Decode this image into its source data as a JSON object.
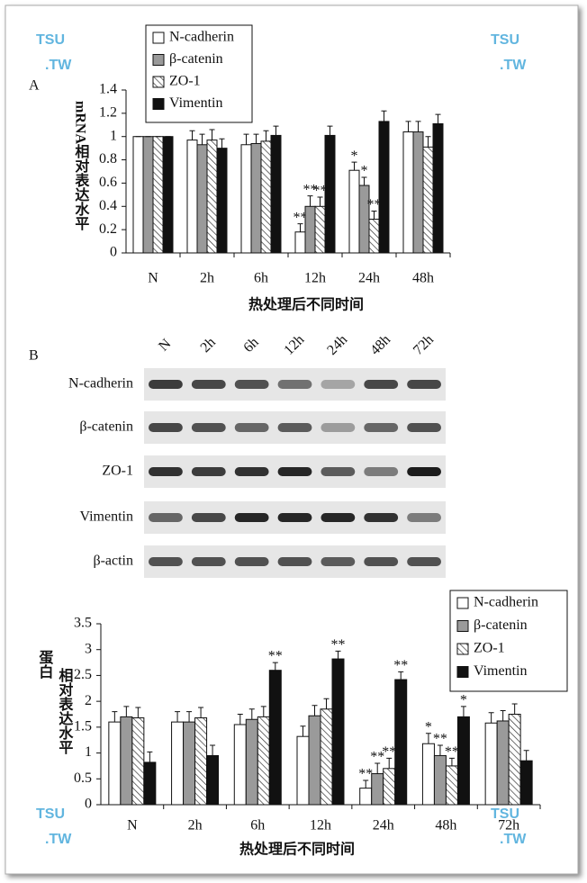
{
  "panel_labels": [
    "A",
    "B"
  ],
  "watermark": {
    "line1": "TSU",
    "line2": ".TW"
  },
  "chart_data": [
    {
      "type": "bar",
      "ylabel": [
        "mRNA相对表达水平"
      ],
      "xlabel": "热处理后不同时间",
      "categories": [
        "N",
        "2h",
        "6h",
        "12h",
        "24h",
        "48h"
      ],
      "ylim": [
        0,
        1.4
      ],
      "yticks": [
        0,
        0.2,
        0.4,
        0.6,
        0.8,
        1,
        1.2,
        1.4
      ],
      "legend": "upper left",
      "series": [
        {
          "name": "N-cadherin",
          "color": "#ffffff",
          "values": [
            1,
            0.97,
            0.93,
            0.18,
            0.71,
            1.04
          ],
          "errors": [
            0,
            0.08,
            0.09,
            0.07,
            0.07,
            0.09
          ],
          "stars": [
            null,
            null,
            null,
            "**",
            "*",
            null
          ]
        },
        {
          "name": "β-catenin",
          "color": "#9a9a9a",
          "values": [
            1,
            0.93,
            0.94,
            0.4,
            0.58,
            1.04
          ],
          "errors": [
            0,
            0.09,
            0.08,
            0.09,
            0.07,
            0.09
          ],
          "stars": [
            null,
            null,
            null,
            "**",
            "*",
            null
          ]
        },
        {
          "name": "ZO-1",
          "color": "#ffffff",
          "pattern": "hatch",
          "values": [
            1,
            0.97,
            0.96,
            0.4,
            0.29,
            0.91
          ],
          "errors": [
            0,
            0.09,
            0.09,
            0.08,
            0.07,
            0.09
          ],
          "stars": [
            null,
            null,
            null,
            "**",
            "**",
            null
          ]
        },
        {
          "name": "Vimentin",
          "color": "#111111",
          "values": [
            1,
            0.9,
            1.01,
            1.01,
            1.13,
            1.11
          ],
          "errors": [
            0,
            0.08,
            0.08,
            0.08,
            0.09,
            0.08
          ],
          "stars": [
            null,
            null,
            null,
            null,
            null,
            null
          ]
        }
      ]
    },
    {
      "type": "bar",
      "ylabel": [
        "蛋白",
        "相对表达水平"
      ],
      "xlabel": "热处理后不同时间",
      "categories": [
        "N",
        "2h",
        "6h",
        "12h",
        "24h",
        "48h",
        "72h"
      ],
      "ylim": [
        0,
        3.5
      ],
      "yticks": [
        0,
        0.5,
        1,
        1.5,
        2,
        2.5,
        3,
        3.5
      ],
      "legend": "upper right",
      "series": [
        {
          "name": "N-cadherin",
          "color": "#ffffff",
          "values": [
            1.6,
            1.6,
            1.55,
            1.32,
            0.32,
            1.18,
            1.58
          ],
          "errors": [
            0.2,
            0.2,
            0.2,
            0.2,
            0.15,
            0.2,
            0.2
          ],
          "stars": [
            null,
            null,
            null,
            null,
            "**",
            "*",
            null
          ]
        },
        {
          "name": "β-catenin",
          "color": "#9a9a9a",
          "values": [
            1.7,
            1.6,
            1.65,
            1.72,
            0.6,
            0.95,
            1.62
          ],
          "errors": [
            0.2,
            0.2,
            0.2,
            0.2,
            0.2,
            0.2,
            0.2
          ],
          "stars": [
            null,
            null,
            null,
            null,
            "**",
            "**",
            null
          ]
        },
        {
          "name": "ZO-1",
          "color": "#ffffff",
          "pattern": "hatch",
          "values": [
            1.68,
            1.68,
            1.7,
            1.85,
            0.7,
            0.75,
            1.75
          ],
          "errors": [
            0.2,
            0.2,
            0.2,
            0.2,
            0.2,
            0.15,
            0.2
          ],
          "stars": [
            null,
            null,
            null,
            null,
            "**",
            "**",
            null
          ]
        },
        {
          "name": "Vimentin",
          "color": "#111111",
          "values": [
            0.82,
            0.95,
            2.6,
            2.82,
            2.42,
            1.7,
            0.85
          ],
          "errors": [
            0.2,
            0.2,
            0.15,
            0.15,
            0.15,
            0.2,
            0.2
          ],
          "stars": [
            null,
            null,
            "**",
            "**",
            "**",
            "*",
            null
          ]
        }
      ]
    }
  ],
  "blot": {
    "lanes": [
      "N",
      "2h",
      "6h",
      "12h",
      "24h",
      "48h",
      "72h"
    ],
    "rows": [
      {
        "label": "N-cadherin",
        "band_intensity": [
          0.8,
          0.75,
          0.7,
          0.55,
          0.3,
          0.75,
          0.75
        ]
      },
      {
        "label": "β-catenin",
        "band_intensity": [
          0.75,
          0.7,
          0.6,
          0.65,
          0.35,
          0.6,
          0.7
        ]
      },
      {
        "label": "ZO-1",
        "band_intensity": [
          0.85,
          0.8,
          0.85,
          0.9,
          0.65,
          0.5,
          0.95
        ]
      },
      {
        "label": "Vimentin",
        "band_intensity": [
          0.6,
          0.75,
          0.9,
          0.9,
          0.9,
          0.85,
          0.5
        ]
      },
      {
        "label": "β-actin",
        "band_intensity": [
          0.7,
          0.7,
          0.7,
          0.7,
          0.65,
          0.7,
          0.7
        ]
      }
    ]
  }
}
